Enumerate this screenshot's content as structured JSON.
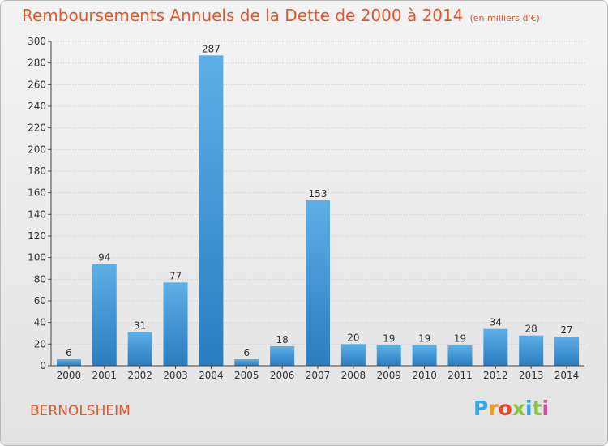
{
  "header": {
    "title": "Remboursements Annuels de la Dette de 2000 à 2014",
    "subtitle": "(en milliers d'€)"
  },
  "footer": {
    "city": "BERNOLSHEIM",
    "logo_letters": [
      "P",
      "r",
      "o",
      "x",
      "i",
      "t",
      "i"
    ]
  },
  "colors": {
    "bar_light": "#5dafe7",
    "bar_dark": "#2a7dc0",
    "title": "#e3582b"
  },
  "chart_data": {
    "type": "bar",
    "title": "Remboursements Annuels de la Dette de 2000 à 2014",
    "xlabel": "",
    "ylabel": "",
    "ylim": [
      0,
      300
    ],
    "yticks": [
      0,
      20,
      40,
      60,
      80,
      100,
      120,
      140,
      160,
      180,
      200,
      220,
      240,
      260,
      280,
      300
    ],
    "grid": true,
    "categories": [
      "2000",
      "2001",
      "2002",
      "2003",
      "2004",
      "2005",
      "2006",
      "2007",
      "2008",
      "2009",
      "2010",
      "2011",
      "2012",
      "2013",
      "2014"
    ],
    "values": [
      6,
      94,
      31,
      77,
      287,
      6,
      18,
      153,
      20,
      19,
      19,
      19,
      34,
      28,
      27
    ]
  }
}
